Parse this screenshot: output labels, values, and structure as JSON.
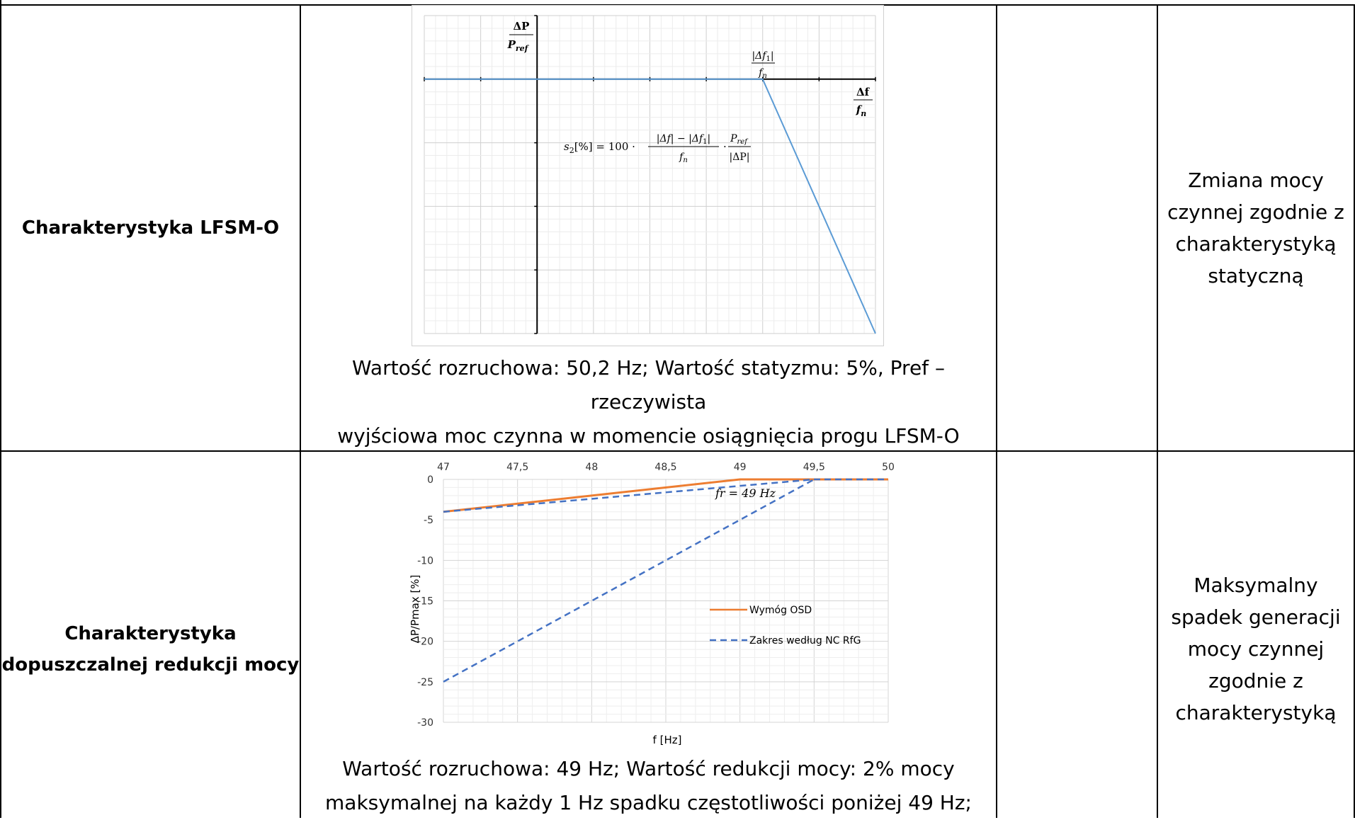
{
  "rows": [
    {
      "label": "Charakterystyka LFSM-O",
      "right": [
        "Zmiana mocy",
        "czynnej zgodnie z",
        "charakterystyką",
        "statyczną"
      ],
      "caption": [
        "Wartość rozruchowa: 50,2 Hz; Wartość statyzmu: 5%,  Pref –  rzeczywista",
        "wyjściowa moc czynna w momencie osiągnięcia progu LFSM-O"
      ]
    },
    {
      "label": [
        "Charakterystyka",
        "dopuszczalnej redukcji mocy"
      ],
      "right": [
        "Maksymalny",
        "spadek generacji",
        "mocy czynnej",
        "zgodnie z",
        "charakterystyką"
      ],
      "caption": [
        "Wartość rozruchowa: 49 Hz; Wartość redukcji mocy: 2% mocy",
        "maksymalnej na każdy 1 Hz spadku częstotliwości poniżej 49 Hz;"
      ]
    }
  ],
  "colors": {
    "line_blue": "#5b9bd5",
    "orange": "#ed7d31",
    "dashed_blue": "#4472c4",
    "grid": "#d9d9d9"
  },
  "chart_data": [
    {
      "type": "line",
      "title": "",
      "ylabel_num": "ΔP",
      "ylabel_den": "P",
      "ylabel_sub": "ref",
      "xlabel_num": "Δf",
      "xlabel_den": "f",
      "xlabel_sub": "n",
      "knee_num": "|Δf",
      "knee_num_sub": "1",
      "knee_num_end": "|",
      "knee_den": "f",
      "knee_den_sub": "n",
      "formula": {
        "lhs": "s",
        "lhs_sub": "2",
        "lhs_rest": "[%] = 100 ·",
        "num": "|Δf| − |Δf",
        "num_sub": "1",
        "num_end": "|",
        "den": "f",
        "den_sub": "n",
        "dot": "·",
        "p_num": "P",
        "p_num_sub": "ref",
        "p_den": "|ΔP|"
      },
      "series": [
        {
          "values_x": [
            -2,
            4,
            6
          ],
          "values_y": [
            0,
            0,
            -4
          ]
        }
      ],
      "xlim": [
        -2,
        6
      ],
      "ylim": [
        -4,
        1
      ],
      "grid": true
    },
    {
      "type": "line",
      "title": "",
      "xlabel": "f [Hz]",
      "ylabel": "ΔP/Pmax [%]",
      "x_ticks": [
        "47",
        "47,5",
        "48",
        "48,5",
        "49",
        "49,5",
        "50"
      ],
      "y_ticks": [
        "0",
        "-5",
        "-10",
        "-15",
        "-20",
        "-25",
        "-30"
      ],
      "xlim": [
        47,
        50
      ],
      "ylim": [
        -30,
        0
      ],
      "x_axis_position": "top",
      "legend_position": "right-middle",
      "annotation": "fr = 49 Hz",
      "grid": true,
      "series": [
        {
          "name": "Wymóg OSD",
          "style": "solid",
          "x": [
            47,
            49,
            50
          ],
          "y": [
            -4,
            0,
            0
          ]
        },
        {
          "name": "Zakres według NC RfG",
          "style": "dashed",
          "x": [
            47,
            49.5,
            50
          ],
          "y": [
            -4,
            0,
            0
          ]
        },
        {
          "name": "",
          "style": "dashed",
          "x": [
            47,
            49.5
          ],
          "y": [
            -25,
            0
          ]
        }
      ]
    }
  ]
}
